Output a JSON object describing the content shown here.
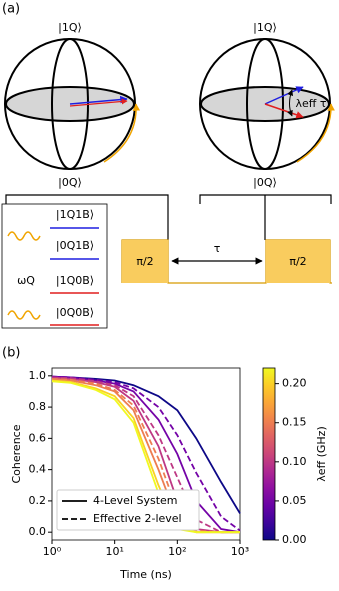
{
  "panel_a": {
    "label": "(a)",
    "sphere_left": {
      "top": "|1Q⟩",
      "bottom": "|0Q⟩"
    },
    "sphere_right": {
      "top": "|1Q⟩",
      "bottom": "|0Q⟩",
      "angle": "λeff τ"
    },
    "pulses": [
      "π/2",
      "π/2"
    ],
    "delay": "τ",
    "levels": [
      "|1Q1B⟩",
      "|0Q1B⟩",
      "|1Q0B⟩",
      "|0Q0B⟩"
    ],
    "frequency": "ωQ"
  },
  "panel_b": {
    "label": "(b)"
  },
  "chart_data": {
    "type": "line",
    "xlabel": "Time (ns)",
    "ylabel": "Coherence",
    "xscale": "log",
    "xlim": [
      1,
      1000
    ],
    "xticks": [
      {
        "value": 1,
        "label": "10⁰"
      },
      {
        "value": 10,
        "label": "10¹"
      },
      {
        "value": 100,
        "label": "10²"
      },
      {
        "value": 1000,
        "label": "10³"
      }
    ],
    "ylim": [
      -0.05,
      1.05
    ],
    "yticks": [
      {
        "value": 0,
        "label": "0.0"
      },
      {
        "value": 0.2,
        "label": "0.2"
      },
      {
        "value": 0.4,
        "label": "0.4"
      },
      {
        "value": 0.6,
        "label": "0.6"
      },
      {
        "value": 0.8,
        "label": "0.8"
      },
      {
        "value": 1,
        "label": "1.0"
      }
    ],
    "x": [
      1,
      2,
      5,
      10,
      20,
      50,
      100,
      200,
      500,
      1000
    ],
    "series": [
      {
        "lambda": 0,
        "dash": false,
        "values": [
          0.995,
          0.99,
          0.98,
          0.97,
          0.94,
          0.87,
          0.78,
          0.6,
          0.32,
          0.12
        ]
      },
      {
        "lambda": 0.05,
        "dash": false,
        "values": [
          0.995,
          0.99,
          0.97,
          0.95,
          0.9,
          0.72,
          0.5,
          0.2,
          0.02,
          0.0
        ]
      },
      {
        "lambda": 0.05,
        "dash": true,
        "values": [
          0.995,
          0.99,
          0.975,
          0.96,
          0.92,
          0.8,
          0.62,
          0.38,
          0.1,
          0.01
        ]
      },
      {
        "lambda": 0.1,
        "dash": false,
        "values": [
          0.99,
          0.98,
          0.96,
          0.93,
          0.84,
          0.55,
          0.2,
          0.02,
          0.0,
          0.0
        ]
      },
      {
        "lambda": 0.1,
        "dash": true,
        "values": [
          0.99,
          0.985,
          0.965,
          0.94,
          0.87,
          0.62,
          0.35,
          0.08,
          0.0,
          0.0
        ]
      },
      {
        "lambda": 0.15,
        "dash": false,
        "values": [
          0.98,
          0.97,
          0.94,
          0.9,
          0.78,
          0.4,
          0.08,
          0.0,
          0.0,
          0.0
        ]
      },
      {
        "lambda": 0.15,
        "dash": true,
        "values": [
          0.98,
          0.975,
          0.95,
          0.91,
          0.81,
          0.47,
          0.14,
          0.01,
          0.0,
          0.0
        ]
      },
      {
        "lambda": 0.2,
        "dash": false,
        "values": [
          0.97,
          0.96,
          0.92,
          0.87,
          0.73,
          0.3,
          0.03,
          0.0,
          0.0,
          0.0
        ]
      },
      {
        "lambda": 0.22,
        "dash": false,
        "values": [
          0.965,
          0.955,
          0.91,
          0.85,
          0.7,
          0.25,
          0.02,
          0.0,
          0.0,
          0.0
        ]
      }
    ],
    "colorbar": {
      "label": "λeff (GHz)",
      "colormap": "plasma",
      "lim": [
        0,
        0.22
      ],
      "ticks": [
        {
          "value": 0,
          "label": "0.00"
        },
        {
          "value": 0.05,
          "label": "0.05"
        },
        {
          "value": 0.1,
          "label": "0.10"
        },
        {
          "value": 0.15,
          "label": "0.15"
        },
        {
          "value": 0.2,
          "label": "0.20"
        }
      ]
    },
    "legend": {
      "position": "lower left",
      "entries": [
        {
          "label": "4-Level System",
          "dash": false
        },
        {
          "label": "Effective 2-level",
          "dash": true
        }
      ]
    }
  }
}
